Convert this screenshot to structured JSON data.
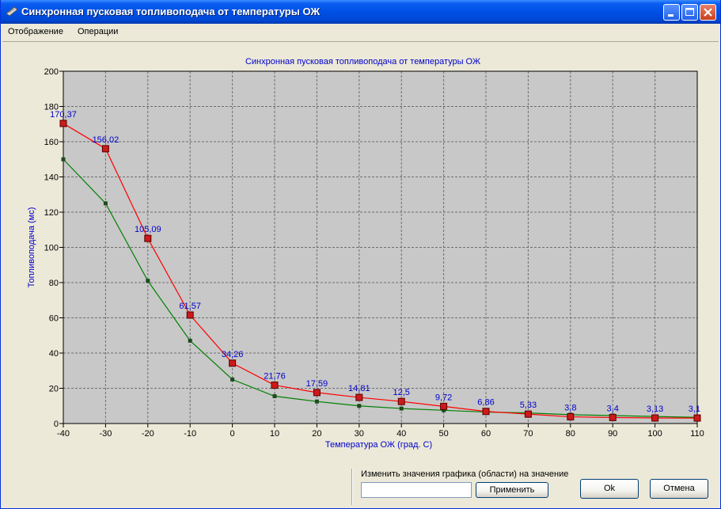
{
  "window": {
    "title": "Синхронная пусковая топливоподача от температуры ОЖ"
  },
  "menu": {
    "items": [
      "Отображение",
      "Операции"
    ]
  },
  "chart_data": {
    "type": "line",
    "title": "Синхронная пусковая топливоподача от температуры ОЖ",
    "xlabel": "Температура ОЖ (град. С)",
    "ylabel": "Топливоподача (мс)",
    "xlim": [
      -40,
      110
    ],
    "ylim": [
      0,
      200
    ],
    "x_ticks": [
      -40,
      -30,
      -20,
      -10,
      0,
      10,
      20,
      30,
      40,
      50,
      60,
      70,
      80,
      90,
      100,
      110
    ],
    "y_ticks": [
      0,
      20,
      40,
      60,
      80,
      100,
      120,
      140,
      160,
      180,
      200
    ],
    "grid": true,
    "x": [
      -40,
      -30,
      -20,
      -10,
      0,
      10,
      20,
      30,
      40,
      50,
      60,
      70,
      80,
      90,
      100,
      110
    ],
    "series": [
      {
        "color": "#FF0000",
        "marker_color": "#CC1A1A",
        "values": [
          170.37,
          156.02,
          105.09,
          61.57,
          34.26,
          21.76,
          17.59,
          14.81,
          12.5,
          9.72,
          6.86,
          5.33,
          3.8,
          3.4,
          3.13,
          3.1
        ],
        "labels": [
          "170,37",
          "156,02",
          "105,09",
          "61,57",
          "34,26",
          "21,76",
          "17,59",
          "14,81",
          "12,5",
          "9,72",
          "6,86",
          "5,33",
          "3,8",
          "3,4",
          "3,13",
          "3,1"
        ]
      },
      {
        "color": "#008000",
        "marker_color": "#1F4A1F",
        "values": [
          150,
          125,
          81,
          47,
          25,
          15.5,
          12.5,
          10,
          8.5,
          7.5,
          6.5,
          6,
          5,
          4.5,
          4,
          3.5
        ]
      }
    ],
    "colors": {
      "plot_bg": "#C8C8C8",
      "grid": "#6E6E6E",
      "label": "#0000CC",
      "title": "#0000CC"
    }
  },
  "bottom": {
    "change_label": "Изменить значения графика (области) на значение",
    "input_value": "",
    "apply_label": "Применить",
    "ok_label": "Ok",
    "cancel_label": "Отмена"
  }
}
